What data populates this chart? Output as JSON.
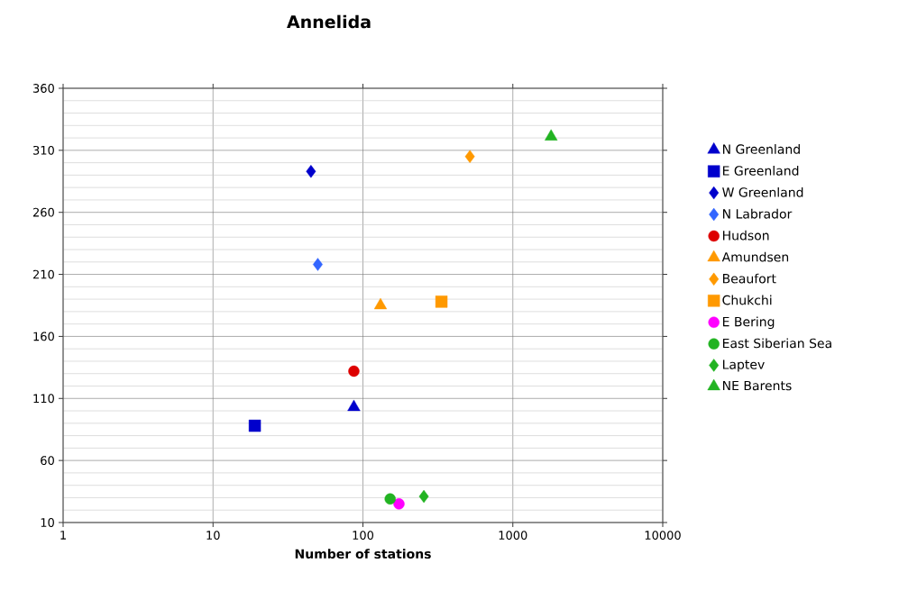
{
  "chart_data": {
    "type": "scatter",
    "title": "Annelida",
    "xlabel": "Number of stations",
    "log": "x",
    "grid": true,
    "legend": "right",
    "xlim": [
      1,
      10000
    ],
    "xticks": [
      1,
      10,
      100,
      1000,
      10000
    ],
    "ylim": [
      10,
      360
    ],
    "yticks": [
      10,
      60,
      110,
      160,
      210,
      260,
      310,
      360
    ],
    "series": [
      {
        "name": "N Greenland",
        "color": "#0000cc",
        "marker": "triangle",
        "x": [
          87
        ],
        "values": [
          103
        ]
      },
      {
        "name": "E Greenland",
        "color": "#0000cc",
        "marker": "square",
        "x": [
          19
        ],
        "values": [
          88
        ]
      },
      {
        "name": "W Greenland",
        "color": "#0000cc",
        "marker": "diamond",
        "x": [
          45
        ],
        "values": [
          293
        ]
      },
      {
        "name": "N Labrador",
        "color": "#3366ff",
        "marker": "diamond",
        "x": [
          50
        ],
        "values": [
          218
        ]
      },
      {
        "name": "Hudson",
        "color": "#dd0000",
        "marker": "circle",
        "x": [
          87
        ],
        "values": [
          132
        ]
      },
      {
        "name": "Amundsen",
        "color": "#ff9900",
        "marker": "triangle",
        "x": [
          131
        ],
        "values": [
          185
        ]
      },
      {
        "name": "Beaufort",
        "color": "#ff9900",
        "marker": "diamond",
        "x": [
          517
        ],
        "values": [
          305
        ]
      },
      {
        "name": "Chukchi",
        "color": "#ff9900",
        "marker": "square",
        "x": [
          334
        ],
        "values": [
          188
        ]
      },
      {
        "name": "E Bering",
        "color": "#ff00ff",
        "marker": "circle",
        "x": [
          174
        ],
        "values": [
          25
        ]
      },
      {
        "name": "East Siberian Sea",
        "color": "#22b322",
        "marker": "circle",
        "x": [
          152
        ],
        "values": [
          29
        ]
      },
      {
        "name": "Laptev",
        "color": "#22b322",
        "marker": "diamond",
        "x": [
          255
        ],
        "values": [
          31
        ]
      },
      {
        "name": "NE Barents",
        "color": "#22b322",
        "marker": "triangle",
        "x": [
          1800
        ],
        "values": [
          321
        ]
      }
    ]
  }
}
